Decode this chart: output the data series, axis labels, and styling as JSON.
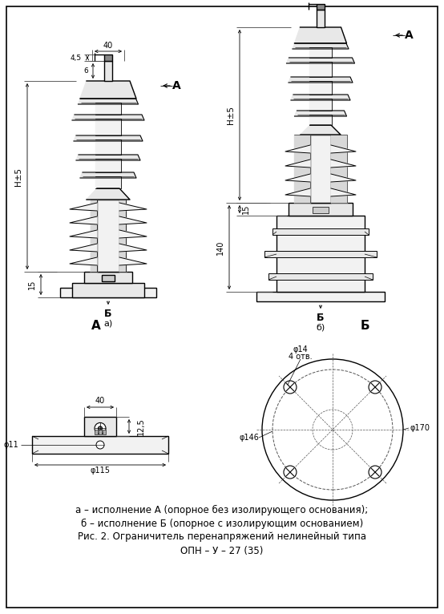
{
  "background_color": "#ffffff",
  "text_color": "#000000",
  "caption_lines": [
    "а – исполнение А (опорное без изолирующего основания);",
    "б – исполнение Б (опорное с изолирующим основанием)",
    "Рис. 2. Ограничитель перенапряжений нелинейный типа",
    "ОПН – У – 27 (35)"
  ],
  "dim_40_top": "40",
  "dim_45": "4,5",
  "dim_6": "6",
  "dim_H5_left": "Н±5",
  "dim_15_left": "15",
  "dim_H5_right": "Н±5",
  "dim_140": "140",
  "dim_15_right": "15",
  "dim_phi11": "φ11",
  "dim_40_view": "40",
  "dim_12_5": "12,5",
  "dim_phi115": "φ115",
  "dim_phi14": "φ14",
  "dim_4otv": "4 отв.",
  "dim_phi146": "φ146",
  "dim_phi170": "φ170",
  "label_A_top_a": "А",
  "label_A_top_b": "А",
  "label_B_arrow_a": "Б",
  "label_B_arrow_b": "Б",
  "label_a_sub": "а)",
  "label_b_sub": "б)",
  "label_A_view": "А",
  "label_B_view": "Б"
}
